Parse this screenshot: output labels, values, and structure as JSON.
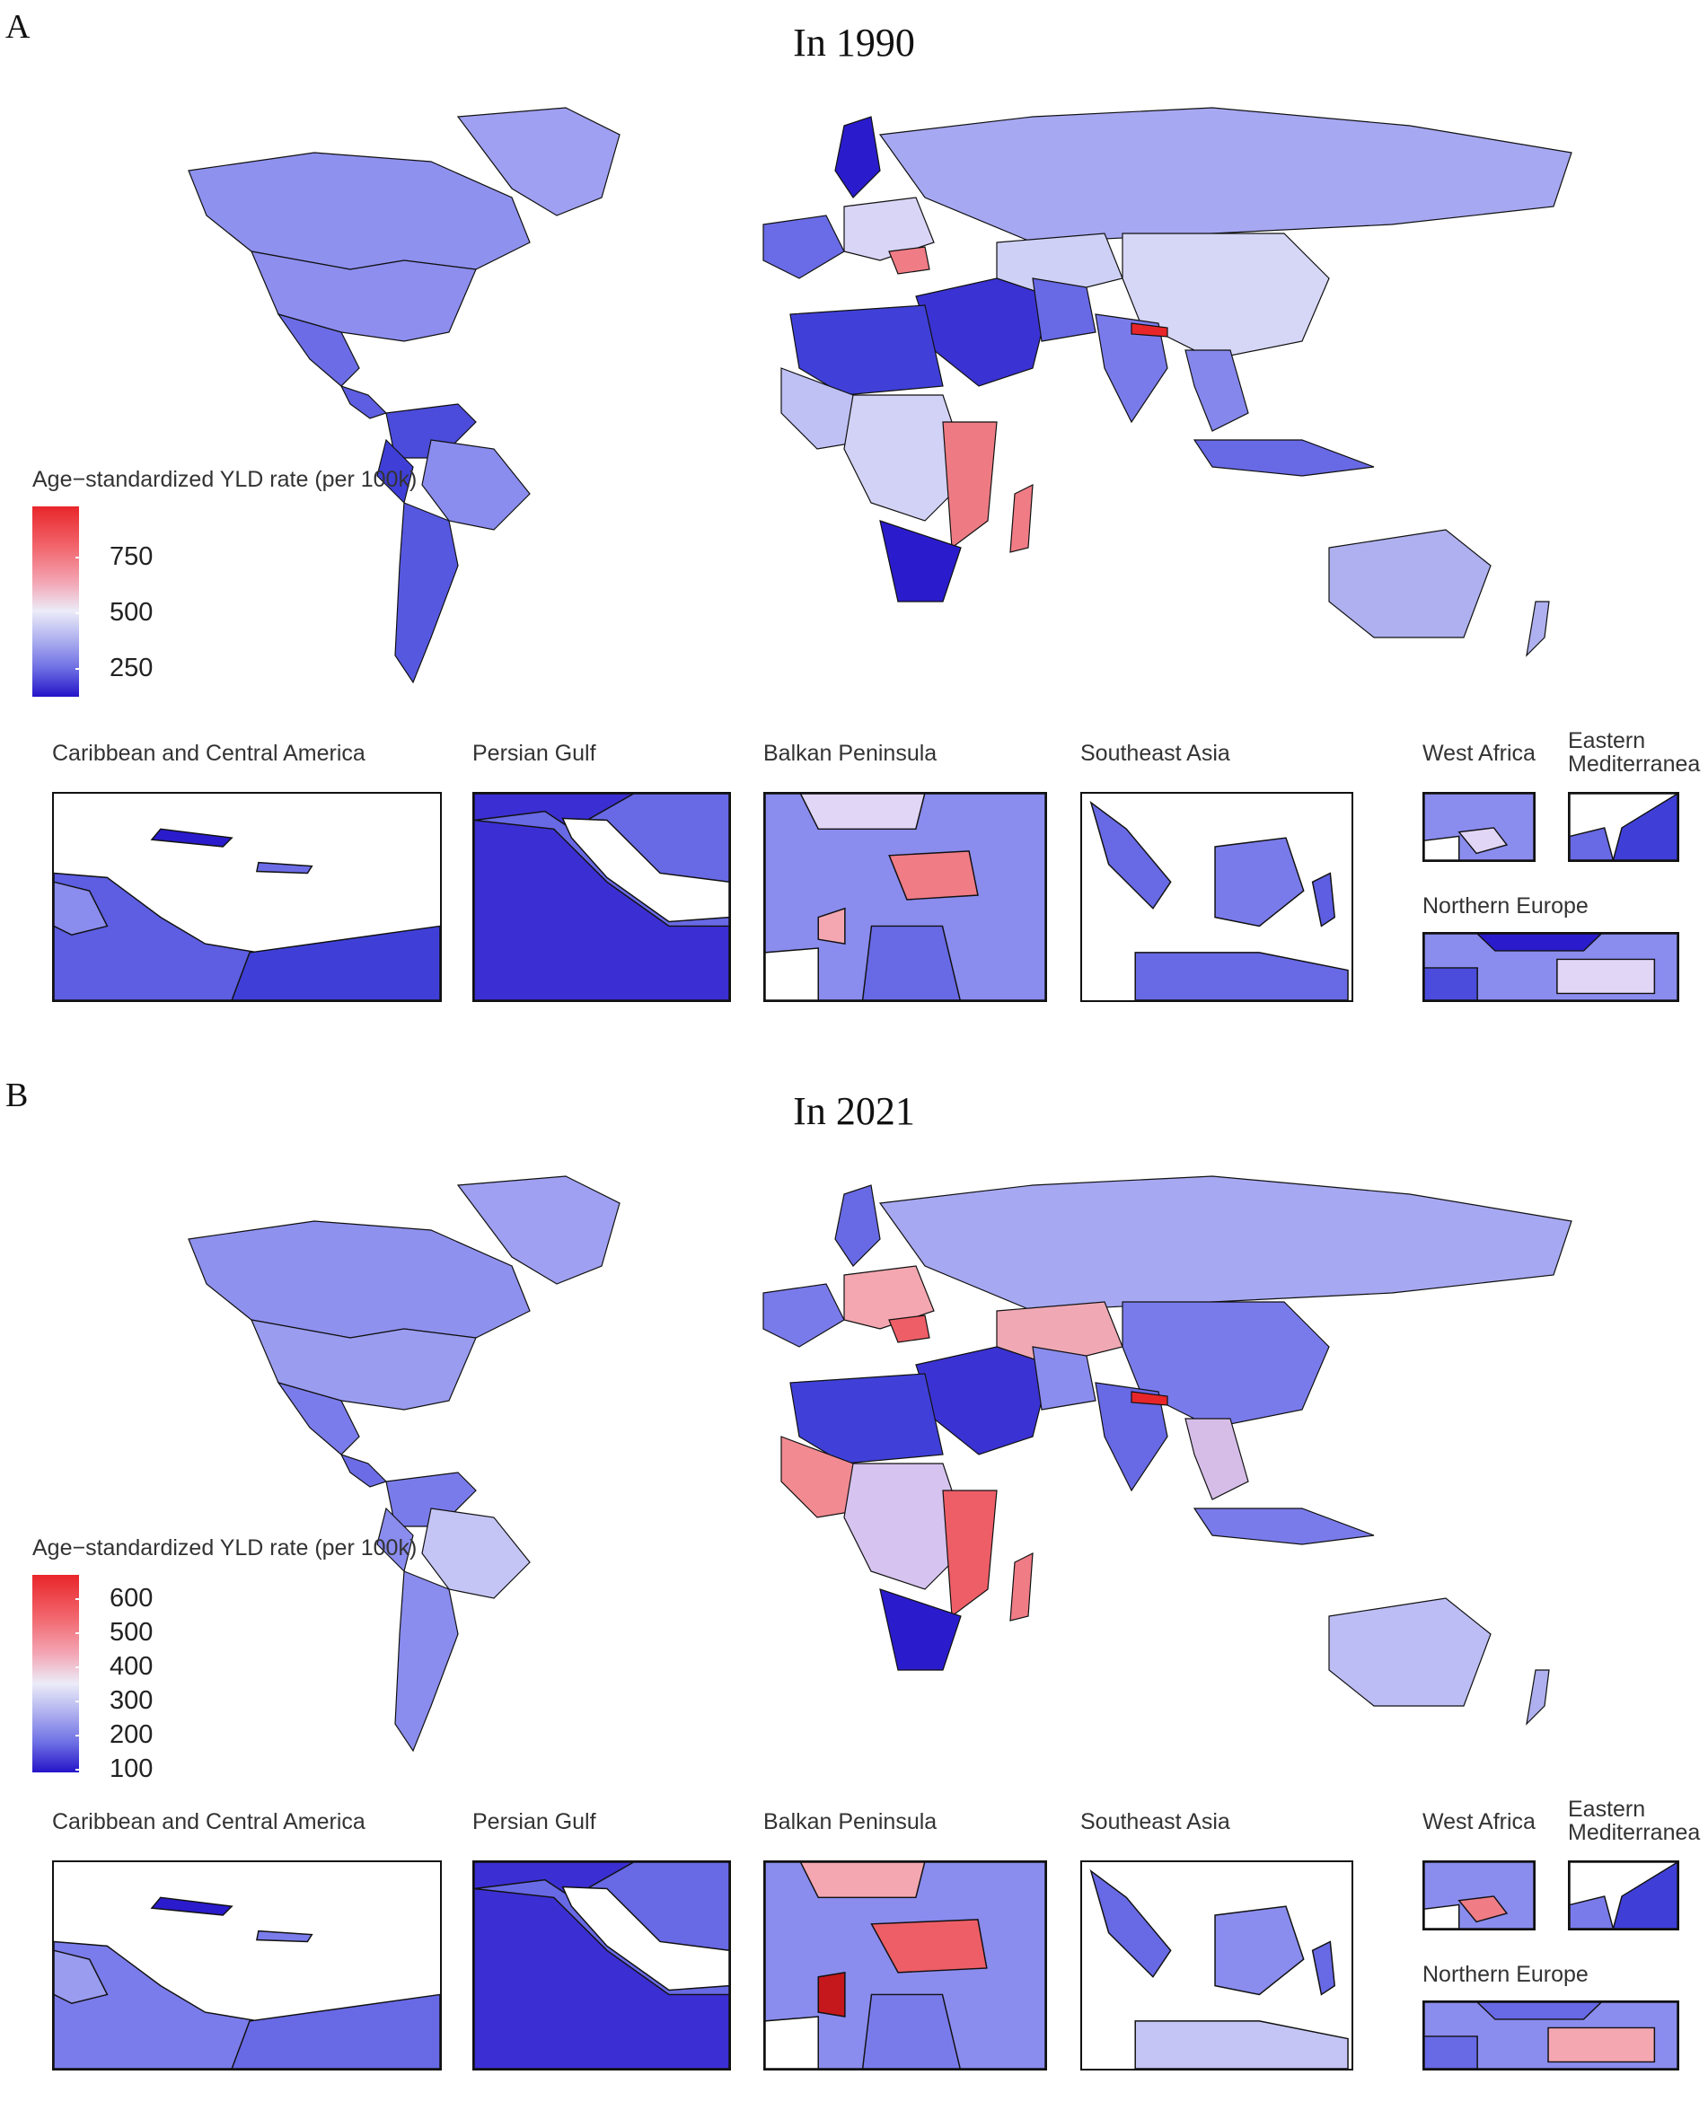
{
  "panels": [
    {
      "letter": "A",
      "title": "In 1990",
      "legend": {
        "title": "Age−standardized YLD rate (per 100k)",
        "ticks": [
          "750",
          "500",
          "250"
        ]
      },
      "insets": {
        "caribbean": "Caribbean and Central America",
        "persian_gulf": "Persian Gulf",
        "balkan": "Balkan Peninsula",
        "southeast_asia": "Southeast Asia",
        "west_africa": "West Africa",
        "eastern_med_line1": "Eastern",
        "eastern_med_line2": "Mediterranea",
        "northern_europe": "Northern Europe"
      }
    },
    {
      "letter": "B",
      "title": "In 2021",
      "legend": {
        "title": "Age−standardized YLD rate (per 100k)",
        "ticks": [
          "600",
          "500",
          "400",
          "300",
          "200",
          "100"
        ]
      },
      "insets": {
        "caribbean": "Caribbean and Central America",
        "persian_gulf": "Persian Gulf",
        "balkan": "Balkan Peninsula",
        "southeast_asia": "Southeast Asia",
        "west_africa": "West Africa",
        "eastern_med_line1": "Eastern",
        "eastern_med_line2": "Mediterranea",
        "northern_europe": "Northern Europe"
      }
    }
  ],
  "colors": {
    "scale_high": "#e8262a",
    "scale_mid": "#ececf8",
    "scale_low": "#2414c8",
    "border": "#111111"
  }
}
